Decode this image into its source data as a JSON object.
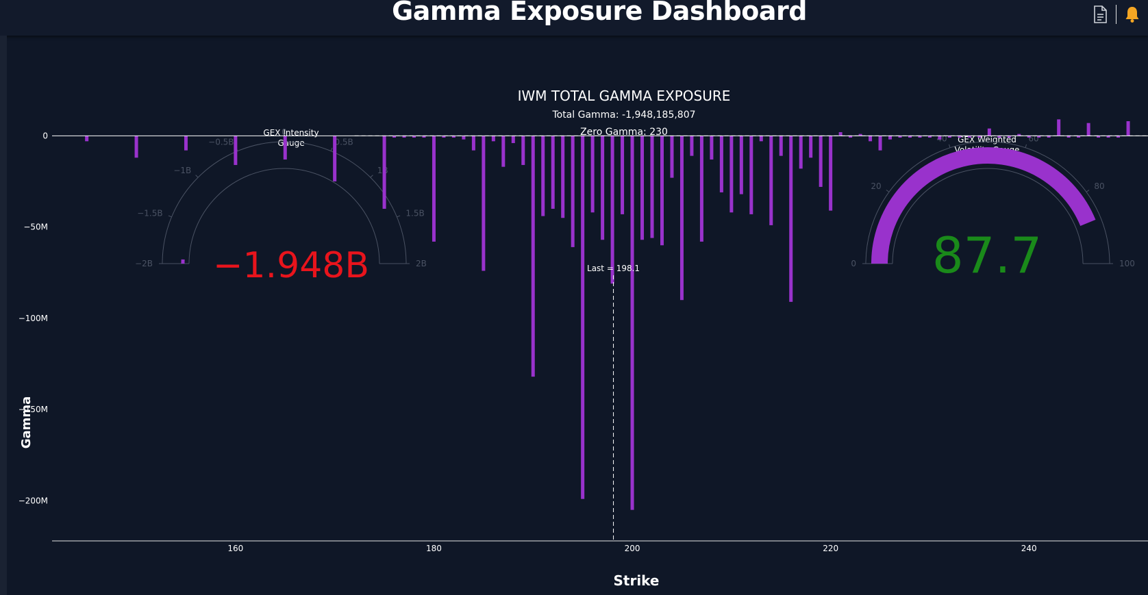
{
  "header": {
    "title": "Gamma Exposure Dashboard"
  },
  "toolbar": {
    "document_icon": "document-icon",
    "bell_icon": "bell-icon",
    "bell_color": "#f5a623"
  },
  "summary": {
    "title": "IWM TOTAL GAMMA EXPOSURE",
    "total_gamma": "Total Gamma: -1,948,185,807",
    "zero_gamma": "Zero Gamma: 230"
  },
  "gauge_left": {
    "title_line1": "GEX Intensity",
    "title_line2": "Gauge",
    "min": -2,
    "max": 2,
    "value": -1.948,
    "display_value": "−1.948B",
    "value_color": "#e8141c",
    "bar_color": "#9932cc",
    "ticks": [
      {
        "v": -2,
        "label": "−2B"
      },
      {
        "v": -1.5,
        "label": "−1.5B"
      },
      {
        "v": -1,
        "label": "−1B"
      },
      {
        "v": -0.5,
        "label": "−0.5B"
      },
      {
        "v": 0,
        "label": "0"
      },
      {
        "v": 0.5,
        "label": "0.5B"
      },
      {
        "v": 1,
        "label": "1B"
      },
      {
        "v": 1.5,
        "label": "1.5B"
      },
      {
        "v": 2,
        "label": "2B"
      }
    ]
  },
  "gauge_right": {
    "title_line1": "GEX Weighted",
    "title_line2": "Volatility Gauge",
    "min": 0,
    "max": 100,
    "value": 87.7,
    "display_value": "87.7",
    "value_color": "#1a8a1a",
    "bar_color": "#9932cc",
    "ticks": [
      {
        "v": 0,
        "label": "0"
      },
      {
        "v": 20,
        "label": "20"
      },
      {
        "v": 40,
        "label": "40"
      },
      {
        "v": 60,
        "label": "60"
      },
      {
        "v": 80,
        "label": "80"
      },
      {
        "v": 100,
        "label": "100"
      }
    ]
  },
  "chart_data": {
    "type": "bar",
    "xlabel": "Strike",
    "ylabel": "Gamma",
    "bar_color": "#9932cc",
    "xlim": [
      141.5,
      252
    ],
    "ylim": [
      -222,
      8
    ],
    "xticks": [
      {
        "v": 160,
        "label": "160"
      },
      {
        "v": 180,
        "label": "180"
      },
      {
        "v": 200,
        "label": "200"
      },
      {
        "v": 220,
        "label": "220"
      },
      {
        "v": 240,
        "label": "240"
      }
    ],
    "yticks": [
      {
        "v": 0,
        "label": "0"
      },
      {
        "v": -50,
        "label": "−50M"
      },
      {
        "v": -100,
        "label": "−100M"
      },
      {
        "v": -150,
        "label": "−150M"
      },
      {
        "v": -200,
        "label": "−200M"
      }
    ],
    "last_price": 198.1,
    "last_label": "Last = 198.1",
    "strikes": [
      145,
      150,
      155,
      160,
      165,
      170,
      175,
      176,
      177,
      178,
      179,
      180,
      181,
      182,
      183,
      184,
      185,
      186,
      187,
      188,
      189,
      190,
      191,
      192,
      193,
      194,
      195,
      196,
      197,
      198,
      199,
      200,
      201,
      202,
      203,
      204,
      205,
      206,
      207,
      208,
      209,
      210,
      211,
      212,
      213,
      214,
      215,
      216,
      217,
      218,
      219,
      220,
      221,
      222,
      223,
      224,
      225,
      226,
      227,
      228,
      229,
      230,
      231,
      232,
      233,
      234,
      235,
      236,
      237,
      238,
      239,
      240,
      241,
      242,
      243,
      244,
      245,
      246,
      247,
      248,
      249,
      250
    ],
    "values": [
      -3,
      -12,
      -8,
      -16,
      -13,
      -25,
      -40,
      -1,
      -1,
      -1,
      -1,
      -58,
      -1,
      -1,
      -2,
      -8,
      -74,
      -3,
      -17,
      -4,
      -16,
      -132,
      -44,
      -40,
      -45,
      -61,
      -199,
      -42,
      -57,
      -81,
      -43,
      -205,
      -57,
      -56,
      -60,
      -23,
      -90,
      -11,
      -58,
      -13,
      -31,
      -42,
      -32,
      -43,
      -3,
      -49,
      -11,
      -91,
      -18,
      -12,
      -28,
      -41,
      2,
      -1,
      1,
      -3,
      -8,
      -2,
      -1,
      -1,
      -1,
      -1,
      -2,
      -1,
      -1,
      -1,
      -1,
      4,
      -1,
      -1,
      1,
      -1,
      -1,
      -1,
      9,
      -1,
      -1,
      7,
      -1,
      -1,
      -1,
      8
    ]
  }
}
